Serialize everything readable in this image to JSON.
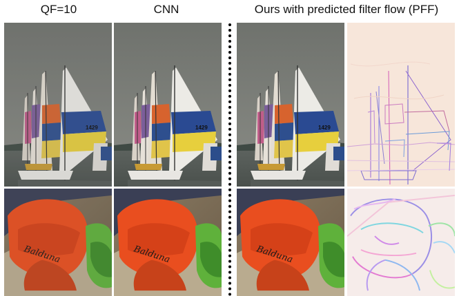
{
  "figure": {
    "columns": [
      {
        "id": "qf10",
        "title": "QF=10"
      },
      {
        "id": "cnn",
        "title": "CNN"
      },
      {
        "id": "ours",
        "title": "Ours with predicted filter flow (PFF)"
      }
    ],
    "rows": [
      {
        "id": "sailboats",
        "sail_text": "1429"
      },
      {
        "id": "caps",
        "cap_text": "Balduna"
      }
    ]
  }
}
